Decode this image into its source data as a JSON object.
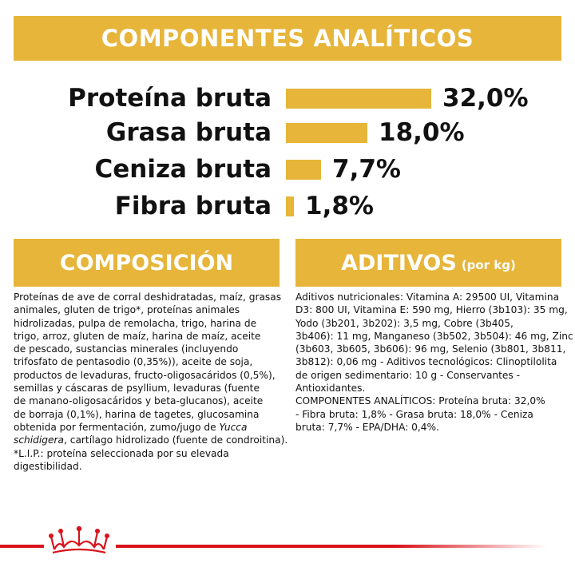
{
  "header": {
    "title": "COMPONENTES ANALÍTICOS"
  },
  "analytics": [
    {
      "label": "Proteína bruta",
      "value_text": "32,0%",
      "value": 32.0
    },
    {
      "label": "Grasa bruta",
      "value_text": "18,0%",
      "value": 18.0
    },
    {
      "label": "Ceniza bruta",
      "value_text": "7,7%",
      "value": 7.7
    },
    {
      "label": "Fibra bruta",
      "value_text": "1,8%",
      "value": 1.8
    }
  ],
  "composition": {
    "title": "COMPOSICIÓN",
    "lines": [
      "Proteínas de ave de corral deshidratadas, maíz, grasas",
      "animales, gluten de trigo*, proteínas animales",
      "hidrolizadas, pulpa de remolacha, trigo, harina de",
      "trigo, arroz, gluten de maíz, harina de maíz, aceite",
      "de pescado, sustancias minerales (incluyendo",
      "trifosfato de pentasodio (0,35%)), aceite de soja,",
      "productos de levaduras, fructo-oligosacáridos (0,5%),",
      "semillas y cáscaras de psyllium, levaduras (fuente",
      "de manano-oligosacáridos y beta-glucanos), aceite",
      "de borraja (0,1%), harina de tagetes, glucosamina",
      "obtenida por fermentación, zumo/jugo de "
    ],
    "italic_1": "Yucca",
    "italic_2": "schidigera",
    "line_after_italic": ", cartílago hidrolizado (fuente de condroitina).",
    "footnote_1": "*L.I.P.: proteína seleccionada por su elevada",
    "footnote_2": "digestibilidad."
  },
  "additives": {
    "title": "ADITIVOS",
    "unit": "(por kg)",
    "lines": [
      "Aditivos nutricionales: Vitamina A: 29500 UI, Vitamina",
      "D3: 800 UI, Vitamina E: 590 mg, Hierro (3b103): 35 mg,",
      "Yodo (3b201, 3b202): 3,5 mg, Cobre (3b405,",
      "3b406): 11 mg, Manganeso (3b502, 3b504): 46 mg, Zinc",
      "(3b603, 3b605, 3b606): 96 mg, Selenio (3b801, 3b811,",
      "3b812): 0,06 mg - Aditivos tecnológicos: Clinoptilolita",
      "de origen sedimentario: 10 g - Conservantes -",
      "Antioxidantes.",
      "COMPONENTES ANALÍTICOS: Proteína bruta: 32,0%",
      "- Fibra bruta: 1,8% - Grasa bruta: 18,0% - Ceniza",
      "bruta: 7,7% - EPA/DHA: 0,4%."
    ]
  },
  "colors": {
    "accent": "#e6b53a",
    "brand_red": "#d8131c",
    "text": "#111111"
  },
  "icons": {
    "logo": "royal-canin-crown-icon"
  }
}
